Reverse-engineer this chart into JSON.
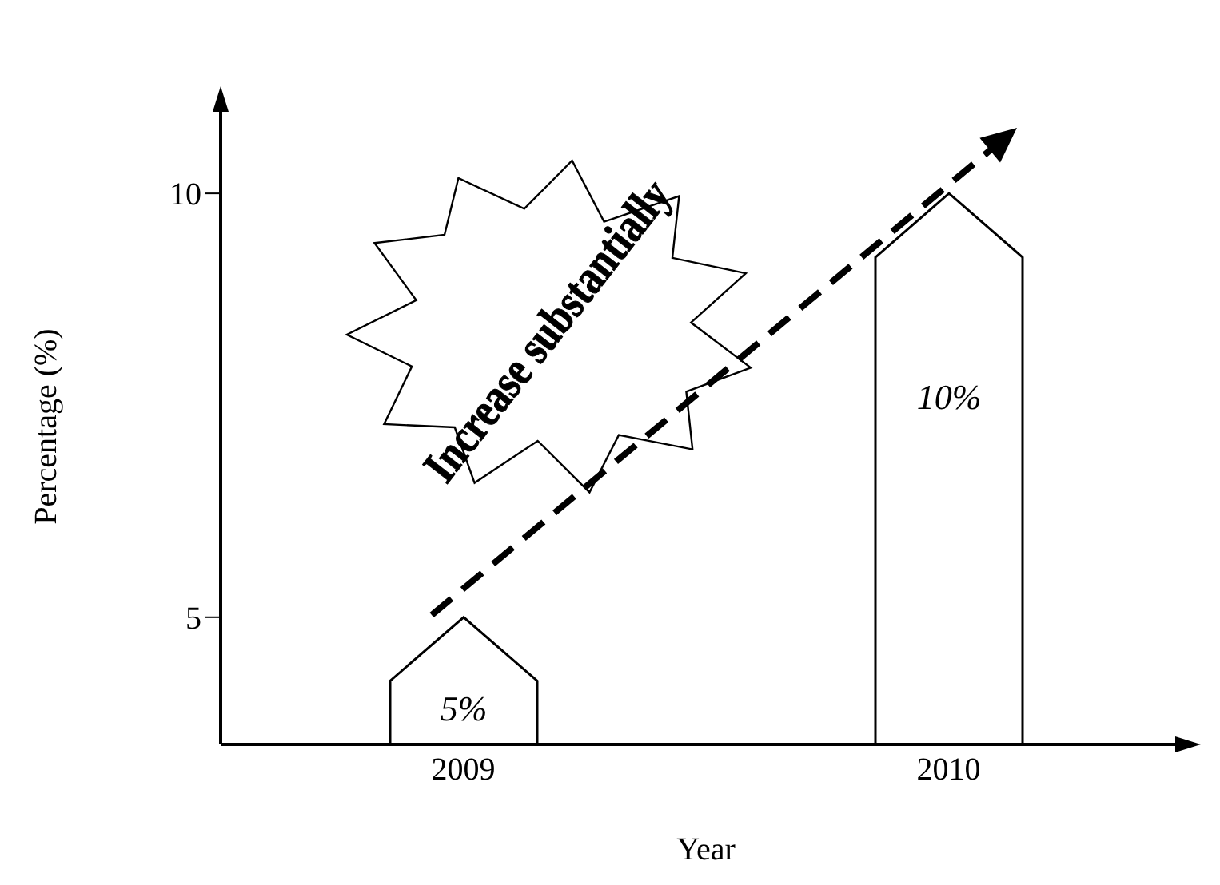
{
  "chart_data": {
    "type": "bar",
    "xlabel": "Year",
    "ylabel": "Percentage (%)",
    "categories": [
      "2009",
      "2010"
    ],
    "values": [
      5,
      10
    ],
    "color": "#ffffff",
    "value_labels": [
      "5%",
      "10%"
    ],
    "ylim": [
      3.5,
      11
    ],
    "yticks": [
      5,
      10
    ],
    "grid": false,
    "annotations": [
      "Increase substantially"
    ]
  }
}
